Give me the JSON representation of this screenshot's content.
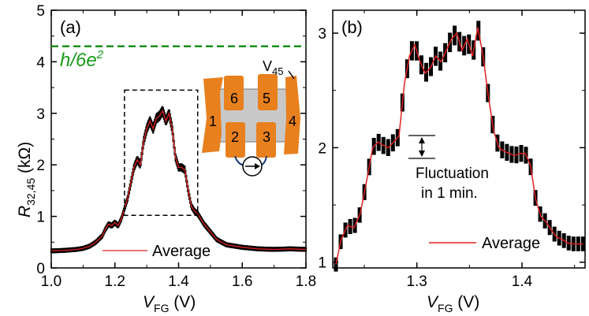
{
  "chart_data": [
    {
      "type": "line",
      "panel_label": "(a)",
      "xlabel": "V",
      "xlabel_sub": "FG",
      "xlabel_unit": " (V)",
      "ylabel": "R",
      "ylabel_sub": "32,45",
      "ylabel_unit": " (kΩ)",
      "xlim": [
        1.0,
        1.8
      ],
      "ylim": [
        0,
        5
      ],
      "xticks": [
        "1.0",
        "1.2",
        "1.4",
        "1.6",
        "1.8"
      ],
      "yticks": [
        "0",
        "1",
        "2",
        "3",
        "4",
        "5"
      ],
      "reference_line": {
        "label_h": "h",
        "label_rest": "/6e",
        "label_sup": "2",
        "value": 4.3,
        "color": "#1a8f1a"
      },
      "legend": "Average",
      "zoom_box": {
        "x": [
          1.23,
          1.46
        ],
        "y": [
          1.02,
          3.45
        ]
      },
      "series": [
        {
          "name": "Average",
          "color": "#e02020",
          "x": [
            1.0,
            1.04,
            1.08,
            1.1,
            1.12,
            1.14,
            1.16,
            1.17,
            1.18,
            1.19,
            1.2,
            1.21,
            1.22,
            1.23,
            1.24,
            1.25,
            1.26,
            1.27,
            1.28,
            1.29,
            1.3,
            1.31,
            1.32,
            1.33,
            1.34,
            1.35,
            1.36,
            1.37,
            1.38,
            1.39,
            1.4,
            1.41,
            1.42,
            1.43,
            1.44,
            1.45,
            1.46,
            1.48,
            1.5,
            1.52,
            1.55,
            1.6,
            1.65,
            1.7,
            1.75,
            1.8
          ],
          "y": [
            0.33,
            0.34,
            0.36,
            0.38,
            0.42,
            0.5,
            0.62,
            0.75,
            0.85,
            0.82,
            0.88,
            0.82,
            0.95,
            1.15,
            1.35,
            1.65,
            1.95,
            2.1,
            2.0,
            2.45,
            2.7,
            2.85,
            2.7,
            2.9,
            2.95,
            3.05,
            2.85,
            3.0,
            2.7,
            2.15,
            1.95,
            1.95,
            1.9,
            1.5,
            1.2,
            1.1,
            1.05,
            0.85,
            0.7,
            0.55,
            0.45,
            0.4,
            0.37,
            0.36,
            0.37,
            0.36
          ]
        }
      ]
    },
    {
      "type": "line",
      "panel_label": "(b)",
      "xlabel": "V",
      "xlabel_sub": "FG",
      "xlabel_unit": " (V)",
      "xlim": [
        1.22,
        1.46
      ],
      "ylim": [
        0.95,
        3.2
      ],
      "xticks": [
        "1.3",
        "1.4"
      ],
      "xtick_values": [
        1.3,
        1.4
      ],
      "yticks": [
        "1",
        "2",
        "3"
      ],
      "legend": "Average",
      "annotation_line1": "Fluctuation",
      "annotation_line2": "in 1 min.",
      "series": [
        {
          "name": "Average",
          "color": "#e02020",
          "x": [
            1.223,
            1.228,
            1.234,
            1.24,
            1.246,
            1.252,
            1.258,
            1.263,
            1.268,
            1.273,
            1.278,
            1.283,
            1.288,
            1.293,
            1.298,
            1.303,
            1.308,
            1.313,
            1.318,
            1.323,
            1.328,
            1.333,
            1.338,
            1.343,
            1.348,
            1.353,
            1.358,
            1.363,
            1.368,
            1.373,
            1.378,
            1.383,
            1.388,
            1.393,
            1.398,
            1.403,
            1.408,
            1.413,
            1.418,
            1.423,
            1.428,
            1.433,
            1.438,
            1.443,
            1.448,
            1.453,
            1.458
          ],
          "y": [
            0.98,
            1.2,
            1.32,
            1.3,
            1.42,
            1.7,
            2.0,
            2.05,
            2.02,
            2.0,
            2.05,
            2.1,
            2.55,
            2.8,
            2.9,
            2.75,
            2.65,
            2.7,
            2.8,
            2.75,
            2.85,
            2.95,
            3.0,
            2.85,
            2.95,
            2.8,
            3.05,
            2.8,
            2.45,
            2.15,
            2.0,
            1.97,
            1.95,
            1.93,
            1.95,
            1.95,
            1.85,
            1.55,
            1.4,
            1.35,
            1.28,
            1.22,
            1.2,
            1.17,
            1.16,
            1.16,
            1.16
          ]
        }
      ]
    }
  ],
  "inset": {
    "electrodes": [
      "1",
      "2",
      "3",
      "4",
      "5",
      "6"
    ],
    "voltage_label": "V",
    "voltage_sub": "45",
    "colors": {
      "contact": "#e8801e",
      "channel": "#c8c8c8",
      "wire": "#1a3a7a"
    }
  }
}
